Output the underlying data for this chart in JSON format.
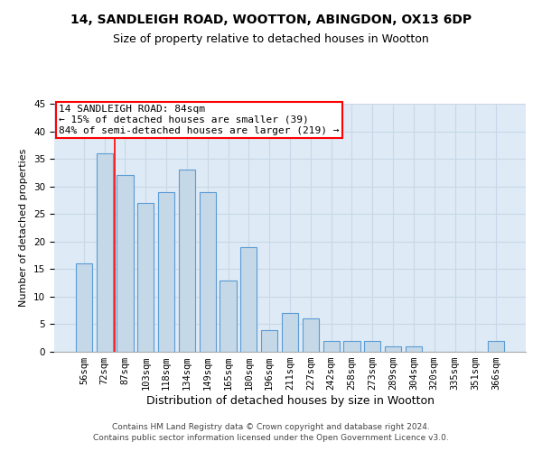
{
  "title1": "14, SANDLEIGH ROAD, WOOTTON, ABINGDON, OX13 6DP",
  "title2": "Size of property relative to detached houses in Wootton",
  "xlabel": "Distribution of detached houses by size in Wootton",
  "ylabel": "Number of detached properties",
  "categories": [
    "56sqm",
    "72sqm",
    "87sqm",
    "103sqm",
    "118sqm",
    "134sqm",
    "149sqm",
    "165sqm",
    "180sqm",
    "196sqm",
    "211sqm",
    "227sqm",
    "242sqm",
    "258sqm",
    "273sqm",
    "289sqm",
    "304sqm",
    "320sqm",
    "335sqm",
    "351sqm",
    "366sqm"
  ],
  "values": [
    16,
    36,
    32,
    27,
    29,
    33,
    29,
    13,
    19,
    4,
    7,
    6,
    2,
    2,
    2,
    1,
    1,
    0,
    0,
    0,
    2
  ],
  "bar_color": "#c5d8e8",
  "bar_edge_color": "#5b9bd5",
  "bar_width": 0.8,
  "vline_x": 1.5,
  "annotation_line1": "14 SANDLEIGH ROAD: 84sqm",
  "annotation_line2": "← 15% of detached houses are smaller (39)",
  "annotation_line3": "84% of semi-detached houses are larger (219) →",
  "annotation_box_color": "white",
  "annotation_box_edge_color": "red",
  "ylim": [
    0,
    45
  ],
  "yticks": [
    0,
    5,
    10,
    15,
    20,
    25,
    30,
    35,
    40,
    45
  ],
  "grid_color": "#c8d8e8",
  "background_color": "#deeaf5",
  "footer": "Contains HM Land Registry data © Crown copyright and database right 2024.\nContains public sector information licensed under the Open Government Licence v3.0.",
  "title1_fontsize": 10,
  "title2_fontsize": 9,
  "xlabel_fontsize": 9,
  "ylabel_fontsize": 8,
  "tick_fontsize": 7.5,
  "annotation_fontsize": 8,
  "footer_fontsize": 6.5
}
